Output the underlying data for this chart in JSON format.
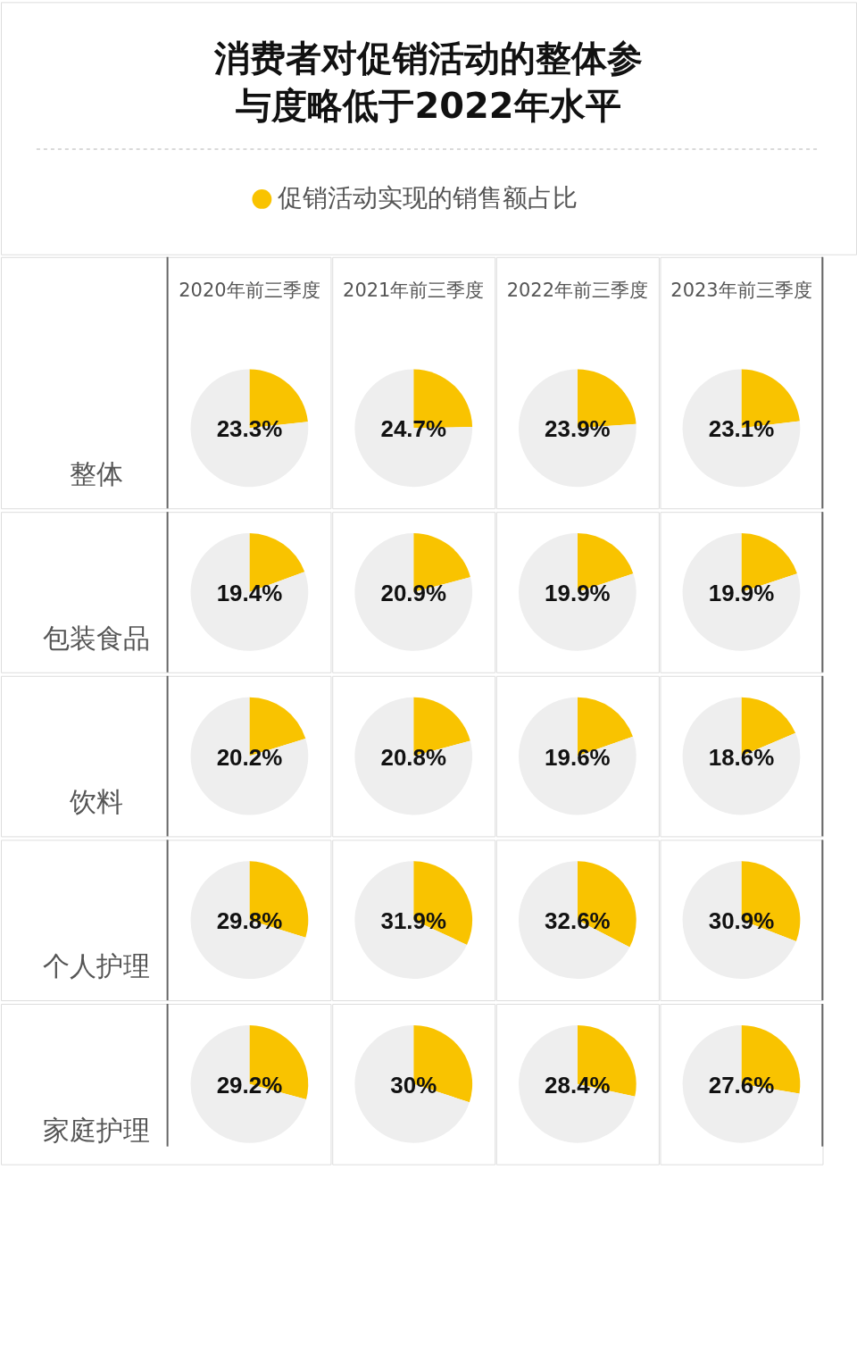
{
  "chart_data": [
    {
      "type": "other",
      "title": "消费者对促销活动的整体参与度略低于2022年水平"
    },
    {
      "type": "pie",
      "title": "2020年前三季度",
      "ylabel": "整体",
      "categories": [
        "促销活动实现的销售额占比",
        null
      ],
      "values": [
        23.3,
        76.7
      ],
      "colors": [
        "#f9c300",
        "#eeeeee"
      ],
      "annotations": [
        "23.3%"
      ],
      "legend": "top"
    },
    {
      "type": "pie",
      "title": "2021年前三季度",
      "values": [
        24.7,
        75.3
      ],
      "colors": [
        "#f9c300",
        "#eeeeee"
      ],
      "annotations": [
        "24.7%"
      ]
    },
    {
      "type": "pie",
      "title": "2022年前三季度",
      "values": [
        23.9,
        76.1
      ],
      "colors": [
        "#f9c300",
        "#eeeeee"
      ],
      "annotations": [
        "23.9%"
      ]
    },
    {
      "type": "pie",
      "title": "2023年前三季度",
      "values": [
        23.1,
        76.9
      ],
      "colors": [
        "#f9c300",
        "#eeeeee"
      ],
      "annotations": [
        "23.1%"
      ]
    },
    {
      "type": "pie",
      "ylabel": "包装食品",
      "values": [
        19.4,
        80.6
      ],
      "colors": [
        "#f9c300",
        "#eeeeee"
      ],
      "annotations": [
        "19.4%"
      ]
    },
    {
      "type": "pie",
      "values": [
        20.9,
        79.1
      ],
      "colors": [
        "#f9c300",
        "#eeeeee"
      ],
      "annotations": [
        "20.9%"
      ]
    },
    {
      "type": "pie",
      "values": [
        19.9,
        80.1
      ],
      "colors": [
        "#f9c300",
        "#eeeeee"
      ],
      "annotations": [
        "19.9%"
      ]
    },
    {
      "type": "pie",
      "values": [
        19.9,
        80.1
      ],
      "colors": [
        "#f9c300",
        "#eeeeee"
      ],
      "annotations": [
        "19.9%"
      ]
    },
    {
      "type": "pie",
      "ylabel": "饮料",
      "values": [
        20.2,
        79.8
      ],
      "colors": [
        "#f9c300",
        "#eeeeee"
      ],
      "annotations": [
        "20.2%"
      ]
    },
    {
      "type": "pie",
      "values": [
        20.8,
        79.2
      ],
      "colors": [
        "#f9c300",
        "#eeeeee"
      ],
      "annotations": [
        "20.8%"
      ]
    },
    {
      "type": "pie",
      "values": [
        19.6,
        80.4
      ],
      "colors": [
        "#f9c300",
        "#eeeeee"
      ],
      "annotations": [
        "19.6%"
      ]
    },
    {
      "type": "pie",
      "values": [
        18.6,
        81.4
      ],
      "colors": [
        "#f9c300",
        "#eeeeee"
      ],
      "annotations": [
        "18.6%"
      ]
    },
    {
      "type": "pie",
      "ylabel": "个人护理",
      "values": [
        29.8,
        70.2
      ],
      "colors": [
        "#f9c300",
        "#eeeeee"
      ],
      "annotations": [
        "29.8%"
      ]
    },
    {
      "type": "pie",
      "values": [
        31.9,
        68.1
      ],
      "colors": [
        "#f9c300",
        "#eeeeee"
      ],
      "annotations": [
        "31.9%"
      ]
    },
    {
      "type": "pie",
      "values": [
        32.6,
        67.4
      ],
      "colors": [
        "#f9c300",
        "#eeeeee"
      ],
      "annotations": [
        "32.6%"
      ]
    },
    {
      "type": "pie",
      "values": [
        30.9,
        69.1
      ],
      "colors": [
        "#f9c300",
        "#eeeeee"
      ],
      "annotations": [
        "30.9%"
      ]
    },
    {
      "type": "pie",
      "ylabel": "家庭护理",
      "values": [
        29.2,
        70.8
      ],
      "colors": [
        "#f9c300",
        "#eeeeee"
      ],
      "annotations": [
        "29.2%"
      ]
    },
    {
      "type": "pie",
      "values": [
        30,
        70
      ],
      "colors": [
        "#f9c300",
        "#eeeeee"
      ],
      "annotations": [
        "30%"
      ]
    },
    {
      "type": "pie",
      "values": [
        28.4,
        71.6
      ],
      "colors": [
        "#f9c300",
        "#eeeeee"
      ],
      "annotations": [
        "28.4%"
      ]
    },
    {
      "type": "pie",
      "values": [
        27.6,
        72.4
      ],
      "colors": [
        "#f9c300",
        "#eeeeee"
      ],
      "annotations": [
        "27.6%"
      ]
    }
  ]
}
